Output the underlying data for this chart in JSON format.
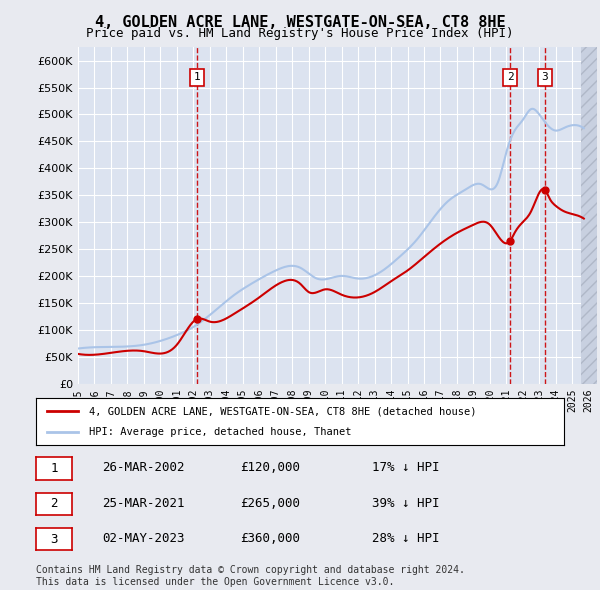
{
  "title": "4, GOLDEN ACRE LANE, WESTGATE-ON-SEA, CT8 8HE",
  "subtitle": "Price paid vs. HM Land Registry's House Price Index (HPI)",
  "ylabel": "",
  "ylim": [
    0,
    625000
  ],
  "yticks": [
    0,
    50000,
    100000,
    150000,
    200000,
    250000,
    300000,
    350000,
    400000,
    450000,
    500000,
    550000,
    600000
  ],
  "xlim_start": 1995.0,
  "xlim_end": 2026.5,
  "xticks": [
    1995,
    1996,
    1997,
    1998,
    1999,
    2000,
    2001,
    2002,
    2003,
    2004,
    2005,
    2006,
    2007,
    2008,
    2009,
    2010,
    2011,
    2012,
    2013,
    2014,
    2015,
    2016,
    2017,
    2018,
    2019,
    2020,
    2021,
    2022,
    2023,
    2024,
    2025,
    2026
  ],
  "bg_color": "#e8eaf0",
  "plot_bg_color": "#dce3f0",
  "hpi_color": "#aac4e8",
  "price_color": "#cc0000",
  "sale_marker_color": "#cc0000",
  "vline_color": "#cc0000",
  "box_color": "#cc0000",
  "hatched_color": "#c8d0e0",
  "legend_label_price": "4, GOLDEN ACRE LANE, WESTGATE-ON-SEA, CT8 8HE (detached house)",
  "legend_label_hpi": "HPI: Average price, detached house, Thanet",
  "footer": "Contains HM Land Registry data © Crown copyright and database right 2024.\nThis data is licensed under the Open Government Licence v3.0.",
  "sales": [
    {
      "num": 1,
      "date_num": 2002.23,
      "price": 120000,
      "label": "26-MAR-2002",
      "pct": "17% ↓ HPI"
    },
    {
      "num": 2,
      "date_num": 2021.23,
      "price": 265000,
      "label": "25-MAR-2021",
      "pct": "39% ↓ HPI"
    },
    {
      "num": 3,
      "date_num": 2023.34,
      "price": 360000,
      "label": "02-MAY-2023",
      "pct": "28% ↓ HPI"
    }
  ],
  "table_rows": [
    {
      "num": 1,
      "date": "26-MAR-2002",
      "price": "£120,000",
      "pct": "17% ↓ HPI"
    },
    {
      "num": 2,
      "date": "25-MAR-2021",
      "price": "£265,000",
      "pct": "39% ↓ HPI"
    },
    {
      "num": 3,
      "date": "02-MAY-2023",
      "price": "£360,000",
      "pct": "28% ↓ HPI"
    }
  ]
}
